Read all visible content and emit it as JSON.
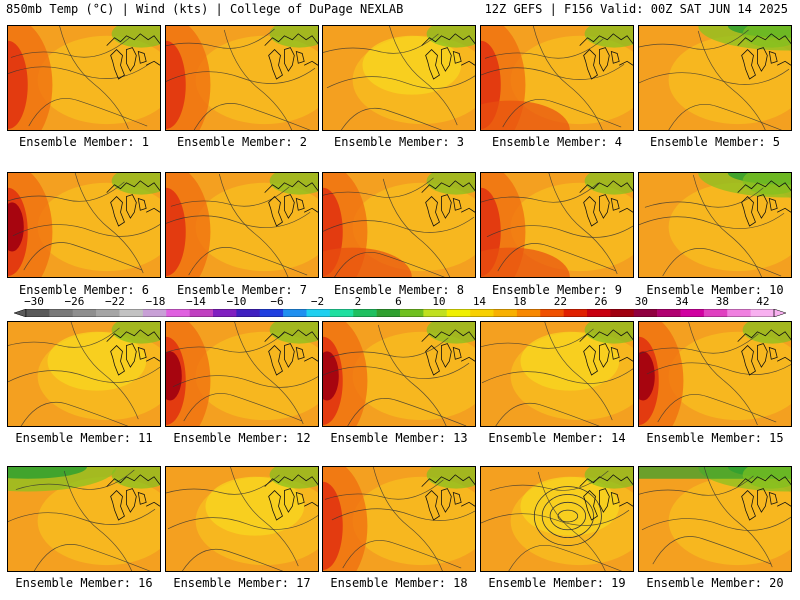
{
  "header": {
    "left": "850mb Temp (°C) | Wind (kts) | College of DuPage NEXLAB",
    "right": "12Z GEFS | F156 Valid: 00Z SAT JUN 14 2025"
  },
  "member_label_prefix": "Ensemble Member: ",
  "members": [
    {
      "number": "1",
      "style": "west"
    },
    {
      "number": "2",
      "style": "west"
    },
    {
      "number": "3",
      "style": "mild"
    },
    {
      "number": "4",
      "style": "southwest"
    },
    {
      "number": "5",
      "style": "cool-ne"
    },
    {
      "number": "6",
      "style": "hot-west"
    },
    {
      "number": "7",
      "style": "west"
    },
    {
      "number": "8",
      "style": "southwest"
    },
    {
      "number": "9",
      "style": "southwest"
    },
    {
      "number": "10",
      "style": "cool-ne"
    },
    {
      "number": "11",
      "style": "mild"
    },
    {
      "number": "12",
      "style": "hot-west"
    },
    {
      "number": "13",
      "style": "hot-west"
    },
    {
      "number": "14",
      "style": "mild"
    },
    {
      "number": "15",
      "style": "hot-west"
    },
    {
      "number": "16",
      "style": "cool-nw"
    },
    {
      "number": "17",
      "style": "mild"
    },
    {
      "number": "18",
      "style": "west"
    },
    {
      "number": "19",
      "style": "low-center"
    },
    {
      "number": "20",
      "style": "cool-north"
    }
  ],
  "colorbar": {
    "labels": [
      "−30",
      "−26",
      "−22",
      "−18",
      "−14",
      "−10",
      "−6",
      "−2",
      "2",
      "6",
      "10",
      "14",
      "18",
      "22",
      "26",
      "30",
      "34",
      "38",
      "42"
    ],
    "colors": [
      "#5a5a5a",
      "#7a7a7a",
      "#8f8f8f",
      "#a5a5a5",
      "#c2c2c2",
      "#c8a0d6",
      "#e060e0",
      "#c040c0",
      "#8020c0",
      "#4020c0",
      "#2040e0",
      "#2090f0",
      "#20d0f0",
      "#20e0a0",
      "#20c060",
      "#30a030",
      "#70c020",
      "#c0e020",
      "#f0f000",
      "#f8d000",
      "#f8b000",
      "#f88800",
      "#f05000",
      "#e02000",
      "#c80010",
      "#a00010",
      "#900040",
      "#b00070",
      "#d000a0",
      "#e040c0",
      "#f080e0",
      "#f8b0f0"
    ],
    "color_names": [
      "blue-cold",
      "green-cool",
      "yellow-warm",
      "orange-warm",
      "red-hot",
      "magenta-extreme"
    ]
  }
}
